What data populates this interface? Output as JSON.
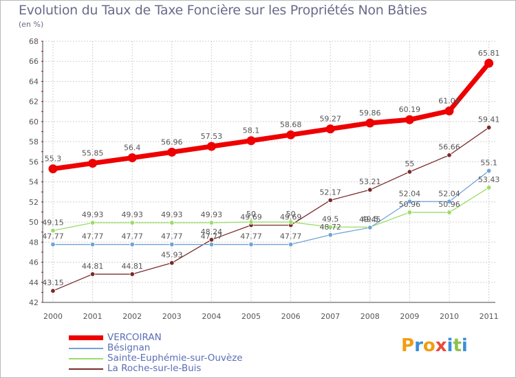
{
  "title": "Evolution du Taux de Taxe Foncière sur les Propriétés Non Bâties",
  "unit_label": "(en %)",
  "brand": {
    "letters": [
      "P",
      "r",
      "o",
      "x",
      "i",
      "t",
      "i"
    ],
    "colors": [
      "#f39c12",
      "#3a8fd8",
      "#f39c12",
      "#e74c3c",
      "#3a8fd8",
      "#8bc34a",
      "#3a8fd8"
    ]
  },
  "chart_data": {
    "type": "line",
    "title": "Evolution du Taux de Taxe Foncière sur les Propriétés Non Bâties",
    "ylabel": "(en %)",
    "x": [
      "2000",
      "2001",
      "2002",
      "2003",
      "2004",
      "2005",
      "2006",
      "2007",
      "2008",
      "2009",
      "2010",
      "2011"
    ],
    "ylim": [
      42,
      68
    ],
    "yticks": [
      42,
      44,
      46,
      48,
      50,
      52,
      54,
      56,
      58,
      60,
      62,
      64,
      66,
      68
    ],
    "grid": true,
    "legend": "bottom-left",
    "series": [
      {
        "name": "VERCOIRAN",
        "color": "#ee0000",
        "values": [
          55.3,
          55.85,
          56.4,
          56.96,
          57.53,
          58.1,
          58.68,
          59.27,
          59.86,
          60.19,
          61.06,
          65.81
        ],
        "labels": [
          "55.3",
          "55.85",
          "56.4",
          "56.96",
          "57.53",
          "58.1",
          "58.68",
          "59.27",
          "59.86",
          "60.19",
          "61.06",
          "65.81"
        ]
      },
      {
        "name": "Bésignan",
        "color": "#6fa3d6",
        "values": [
          47.77,
          47.77,
          47.77,
          47.77,
          47.77,
          47.77,
          47.77,
          48.72,
          49.45,
          52.04,
          52.04,
          55.1
        ],
        "labels": [
          "47.77",
          "47.77",
          "47.77",
          "47.77",
          "47.77",
          "47.77",
          "47.77",
          "48.72",
          "49.45",
          "52.04",
          "52.04",
          "55.1"
        ]
      },
      {
        "name": "Sainte-Euphémie-sur-Ouvèze",
        "color": "#99dd66",
        "values": [
          49.15,
          49.93,
          49.93,
          49.93,
          49.93,
          50,
          50,
          49.5,
          49.5,
          50.96,
          50.96,
          53.43
        ],
        "labels": [
          "49.15",
          "49.93",
          "49.93",
          "49.93",
          "49.93",
          "50",
          "50",
          "49.5",
          "49.5",
          "50.96",
          "50.96",
          "53.43"
        ]
      },
      {
        "name": "La Roche-sur-le-Buis",
        "color": "#7a2a2a",
        "values": [
          43.15,
          44.81,
          44.81,
          45.93,
          48.24,
          49.69,
          49.69,
          52.17,
          53.21,
          55,
          56.66,
          59.41
        ],
        "labels": [
          "43.15",
          "44.81",
          "44.81",
          "45.93",
          "48.24",
          "49.69",
          "49.69",
          "52.17",
          "53.21",
          "55",
          "56.66",
          "59.41"
        ]
      }
    ]
  }
}
